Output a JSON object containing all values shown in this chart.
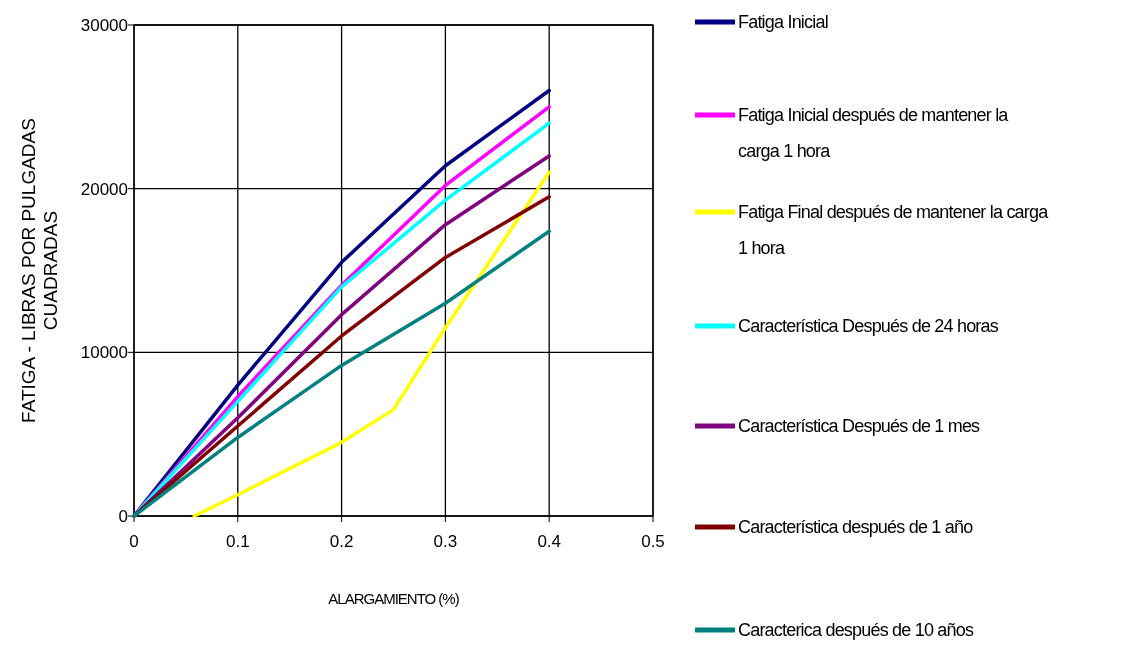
{
  "chart_data": {
    "type": "line",
    "xlabel": "ALARGAMIENTO (%)",
    "ylabel": "FATIGA - LIBRAS POR PULGADAS CUADRADAS",
    "xlim": [
      0,
      0.5
    ],
    "xticks": [
      0,
      0.1,
      0.2,
      0.3,
      0.4,
      0.5
    ],
    "ylim": [
      0,
      30000
    ],
    "yticks": [
      0,
      10000,
      20000,
      30000
    ],
    "grid": true,
    "legend": "right",
    "marker": "none",
    "line_style": "solid",
    "series": [
      {
        "name": "Fatiga Inicial",
        "color": "#000080",
        "x": [
          0,
          0.1,
          0.2,
          0.3,
          0.4
        ],
        "values": [
          0,
          8000,
          15500,
          21400,
          26000
        ]
      },
      {
        "name": "Fatiga Inicial después de mantener la carga 1 hora",
        "color": "#ff00ff",
        "x": [
          0,
          0.1,
          0.2,
          0.3,
          0.4
        ],
        "values": [
          0,
          7300,
          14100,
          20200,
          25000
        ]
      },
      {
        "name": "Fatiga Final después de mantener la carga 1 hora",
        "color": "#ffff00",
        "x": [
          0.058,
          0.1,
          0.2,
          0.25,
          0.3,
          0.4
        ],
        "values": [
          0,
          1300,
          4500,
          6500,
          11500,
          21000
        ]
      },
      {
        "name": "Característica Después de 24 horas",
        "color": "#00ffff",
        "x": [
          0,
          0.1,
          0.2,
          0.3,
          0.4
        ],
        "values": [
          0,
          7000,
          14000,
          19300,
          24000
        ]
      },
      {
        "name": "Característica Después de 1 mes",
        "color": "#800080",
        "x": [
          0,
          0.1,
          0.2,
          0.3,
          0.4
        ],
        "values": [
          0,
          6000,
          12300,
          17800,
          22000
        ]
      },
      {
        "name": "Característica después de 1 año",
        "color": "#800000",
        "x": [
          0,
          0.1,
          0.2,
          0.3,
          0.4
        ],
        "values": [
          0,
          5500,
          11000,
          15800,
          19500
        ]
      },
      {
        "name": "Caracterica después de 10 años",
        "color": "#008080",
        "x": [
          0,
          0.1,
          0.2,
          0.3,
          0.4
        ],
        "values": [
          0,
          4800,
          9200,
          13000,
          17400
        ]
      }
    ]
  }
}
